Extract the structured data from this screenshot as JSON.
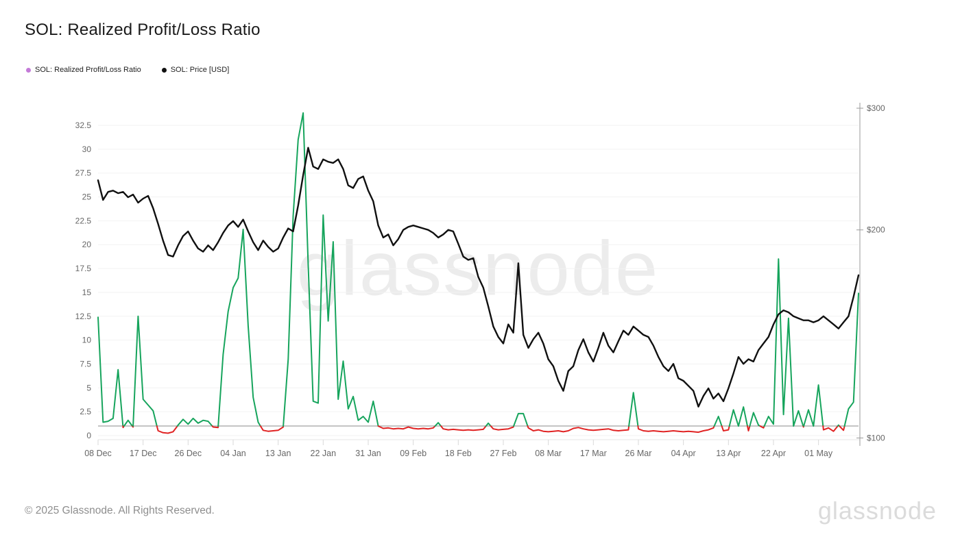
{
  "page": {
    "title": "SOL: Realized Profit/Loss Ratio",
    "footer": "© 2025 Glassnode. All Rights Reserved.",
    "watermark_center": "glassnode",
    "watermark_corner": "glassnode"
  },
  "legend": {
    "items": [
      {
        "label": "SOL: Realized Profit/Loss Ratio",
        "color": "#c47ad8"
      },
      {
        "label": "SOL: Price [USD]",
        "color": "#111111"
      }
    ]
  },
  "chart_data": {
    "type": "line",
    "title": "SOL: Realized Profit/Loss Ratio",
    "x_cadence": "daily",
    "x_start_label": "08 Dec",
    "x_tick_labels": [
      "08 Dec",
      "17 Dec",
      "26 Dec",
      "04 Jan",
      "13 Jan",
      "22 Jan",
      "31 Jan",
      "09 Feb",
      "18 Feb",
      "27 Feb",
      "08 Mar",
      "17 Mar",
      "26 Mar",
      "04 Apr",
      "13 Apr",
      "22 Apr",
      "01 May"
    ],
    "x_tick_indices": [
      0,
      9,
      18,
      27,
      36,
      45,
      54,
      63,
      72,
      81,
      90,
      99,
      108,
      117,
      126,
      135,
      144
    ],
    "left_axis": {
      "series": "SOL: Realized Profit/Loss Ratio",
      "scale": "linear",
      "range": [
        0,
        33.9
      ],
      "ticks": [
        0,
        2.5,
        5,
        7.5,
        10,
        12.5,
        15,
        17.5,
        20,
        22.5,
        25,
        27.5,
        30,
        32.5
      ]
    },
    "right_axis": {
      "series": "SOL: Price [USD]",
      "scale": "log",
      "range": [
        100,
        300
      ],
      "ticks": [
        100,
        200,
        300
      ],
      "tick_labels": [
        "$100",
        "$200",
        "$300"
      ]
    },
    "threshold": {
      "value": 1
    },
    "colors": {
      "grid": "#f2f2f2",
      "threshold_line": "#b0b0b0",
      "axis_line": "#9a9a9a",
      "tick_mark": "#d9d9d9",
      "axis_text": "#666666"
    },
    "series": [
      {
        "name": "SOL: Realized Profit/Loss Ratio",
        "axis": "left",
        "style": {
          "above_color": "#16a45c",
          "below_color": "#e02222",
          "split_at": 1,
          "width": 2
        },
        "values": [
          12.4,
          1.4,
          1.5,
          1.8,
          6.9,
          0.85,
          1.6,
          0.9,
          12.5,
          3.8,
          3.2,
          2.6,
          0.5,
          0.3,
          0.25,
          0.4,
          1.1,
          1.7,
          1.2,
          1.8,
          1.3,
          1.6,
          1.5,
          0.9,
          0.85,
          8.5,
          13,
          15.5,
          16.5,
          21.6,
          11.5,
          4,
          1.4,
          0.55,
          0.45,
          0.5,
          0.55,
          0.9,
          8,
          23,
          31,
          33.8,
          18,
          3.6,
          3.4,
          23.1,
          12,
          20.3,
          3.8,
          7.8,
          2.8,
          4.1,
          1.6,
          2,
          1.4,
          3.6,
          1,
          0.75,
          0.8,
          0.7,
          0.75,
          0.7,
          0.9,
          0.75,
          0.7,
          0.75,
          0.7,
          0.8,
          1.35,
          0.7,
          0.6,
          0.65,
          0.6,
          0.55,
          0.6,
          0.55,
          0.6,
          0.65,
          1.3,
          0.7,
          0.6,
          0.65,
          0.7,
          0.9,
          2.3,
          2.3,
          0.8,
          0.5,
          0.6,
          0.45,
          0.4,
          0.45,
          0.5,
          0.4,
          0.5,
          0.75,
          0.85,
          0.7,
          0.6,
          0.55,
          0.6,
          0.65,
          0.7,
          0.55,
          0.5,
          0.55,
          0.6,
          4.5,
          0.7,
          0.5,
          0.45,
          0.5,
          0.45,
          0.4,
          0.45,
          0.5,
          0.45,
          0.4,
          0.45,
          0.4,
          0.35,
          0.5,
          0.6,
          0.8,
          2,
          0.5,
          0.6,
          2.7,
          1,
          3,
          0.5,
          2.4,
          1.1,
          0.8,
          2,
          1.2,
          18.5,
          2.2,
          12.3,
          1,
          2.6,
          0.9,
          2.7,
          1,
          5.3,
          0.6,
          0.8,
          0.45,
          1.1,
          0.55,
          2.8,
          3.5,
          14.9
        ]
      },
      {
        "name": "SOL: Price [USD]",
        "axis": "right",
        "style": {
          "color": "#101010",
          "width": 2.4
        },
        "values": [
          236,
          221,
          227,
          228,
          226,
          227,
          223,
          225,
          219,
          222,
          224,
          215,
          204,
          193,
          184,
          183,
          190,
          196,
          199,
          193,
          188,
          186,
          190,
          187,
          192,
          198,
          203,
          206,
          202,
          207,
          199,
          192,
          187,
          193,
          189,
          186,
          188,
          195,
          201,
          199,
          217,
          240,
          263,
          247,
          245,
          253,
          251,
          250,
          253,
          245,
          232,
          230,
          237,
          239,
          228,
          220,
          203,
          195,
          197,
          190,
          194,
          200,
          202,
          203,
          202,
          201,
          200,
          198,
          195,
          197,
          200,
          199,
          191,
          183,
          181,
          182,
          171,
          165,
          155,
          145,
          140,
          137,
          146,
          142,
          179,
          141,
          135,
          139,
          142,
          137,
          130,
          127,
          121,
          117,
          125,
          127,
          134,
          139,
          133,
          129,
          135,
          142,
          136,
          133,
          138,
          143,
          141,
          145,
          143,
          141,
          140,
          136,
          131,
          127,
          125,
          128,
          122,
          121,
          119,
          117,
          111,
          115,
          118,
          114,
          116,
          113,
          118,
          124,
          131,
          128,
          130,
          129,
          134,
          137,
          140,
          146,
          151,
          153,
          152,
          150,
          149,
          148,
          148,
          147,
          148,
          150,
          148,
          146,
          144,
          147,
          150,
          160,
          172
        ]
      }
    ]
  }
}
